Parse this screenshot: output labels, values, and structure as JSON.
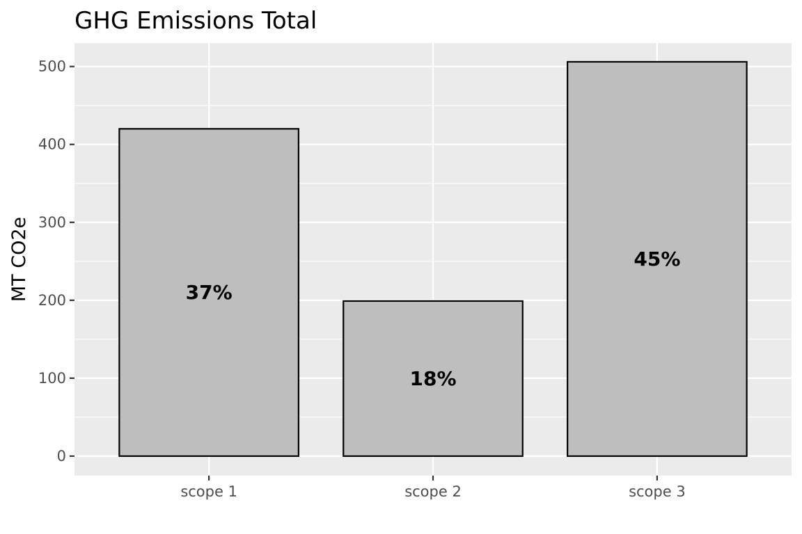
{
  "chart_data": {
    "type": "bar",
    "title": "GHG Emissions Total",
    "xlabel": "",
    "ylabel": "MT CO2e",
    "categories": [
      "scope 1",
      "scope 2",
      "scope 3"
    ],
    "values": [
      420,
      199,
      506
    ],
    "data_labels": [
      "37%",
      "18%",
      "45%"
    ],
    "ylim": [
      -25,
      530
    ],
    "yticks": [
      0,
      100,
      200,
      300,
      400,
      500
    ],
    "ytick_labels": [
      "0",
      "100",
      "200",
      "300",
      "400",
      "500"
    ],
    "grid": true,
    "legend": "none"
  },
  "colors": {
    "panel_background": "#ebebeb",
    "grid_major": "#ffffff",
    "bar_fill": "#bebebe",
    "bar_outline": "#000000",
    "tick": "#333333"
  }
}
